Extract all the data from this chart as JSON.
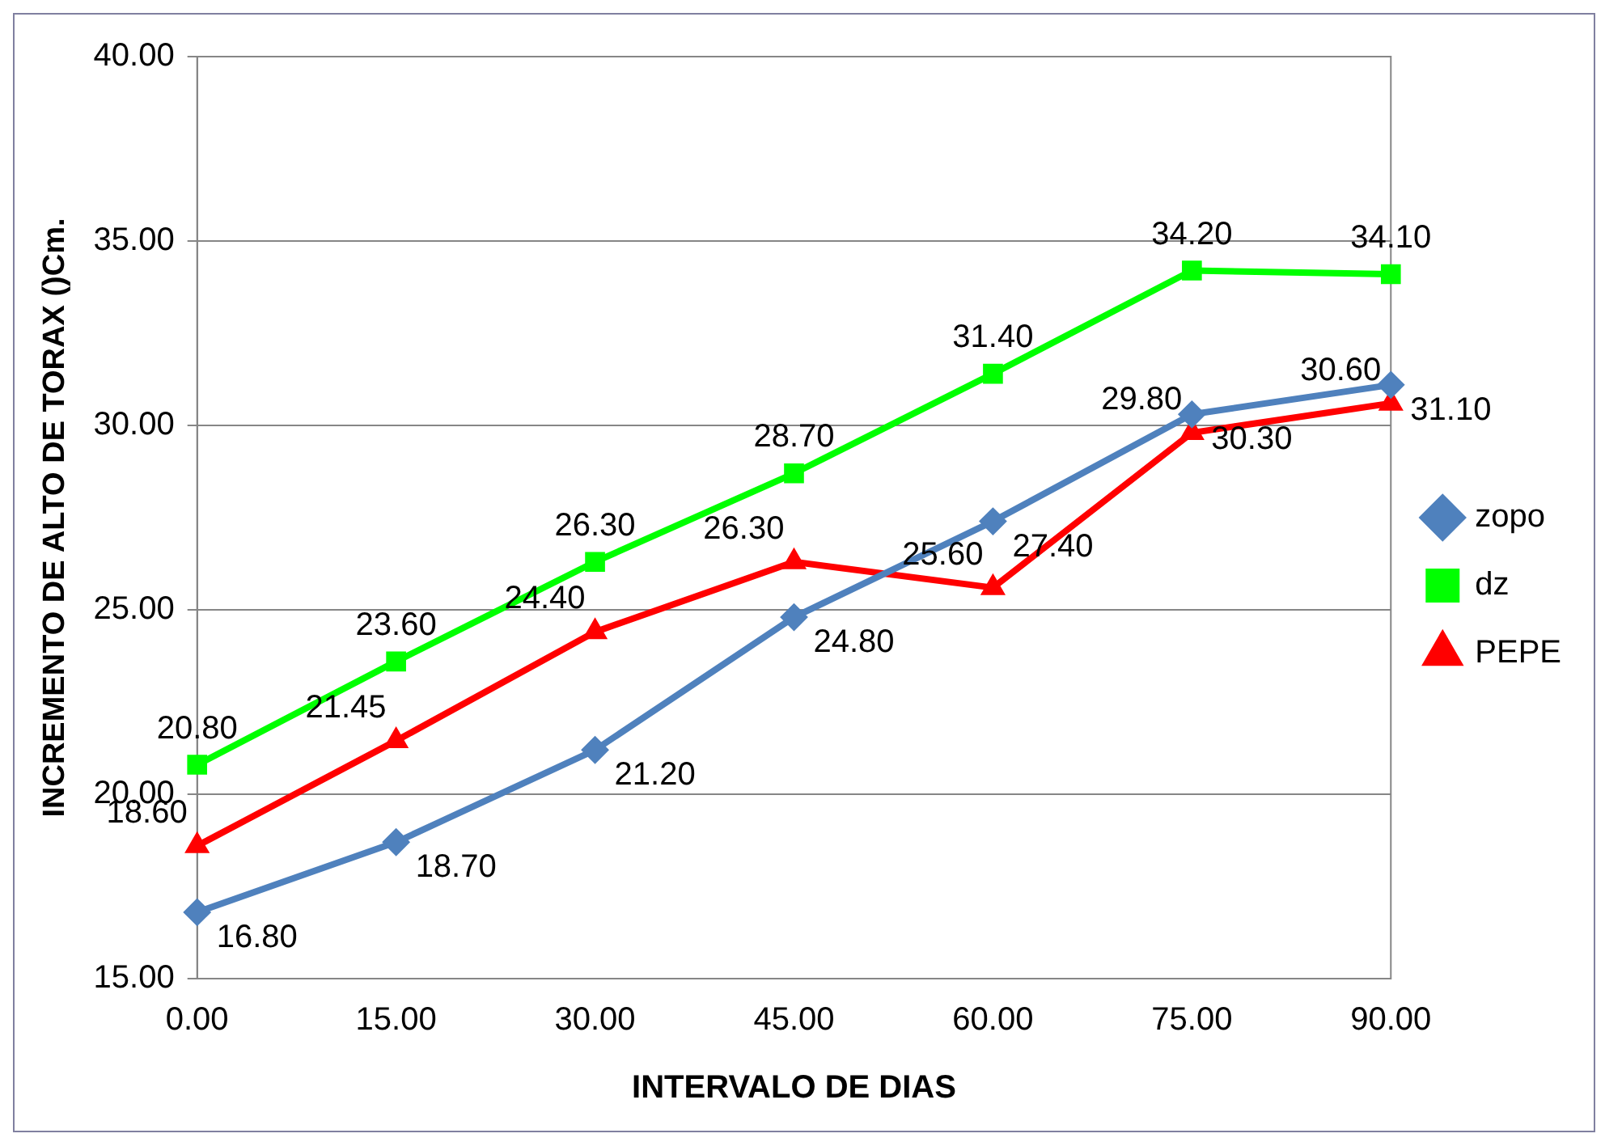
{
  "chart_data": {
    "type": "line",
    "xlabel": "INTERVALO DE DIAS",
    "ylabel": "INCREMENTO DE ALTO DE TORAX ()Cm.",
    "categories": [
      "0.00",
      "15.00",
      "30.00",
      "45.00",
      "60.00",
      "75.00",
      "90.00"
    ],
    "series": [
      {
        "name": "zopo",
        "color": "#4f81bd",
        "marker": "diamond",
        "values": [
          16.8,
          18.7,
          21.2,
          24.8,
          27.4,
          30.3,
          31.1
        ],
        "value_labels": [
          "16.80",
          "18.70",
          "21.20",
          "24.80",
          "27.40",
          "30.30",
          "31.10"
        ]
      },
      {
        "name": "dz",
        "color": "#00ff00",
        "marker": "square",
        "values": [
          20.8,
          23.6,
          26.3,
          28.7,
          31.4,
          34.2,
          34.1
        ],
        "value_labels": [
          "20.80",
          "23.60",
          "26.30",
          "28.70",
          "31.40",
          "34.20",
          "34.10"
        ]
      },
      {
        "name": "PEPE",
        "color": "#ff0000",
        "marker": "triangle",
        "values": [
          18.6,
          21.45,
          24.4,
          26.3,
          25.6,
          29.8,
          30.6
        ],
        "value_labels": [
          "18.60",
          "21.45",
          "24.40",
          "26.30",
          "25.60",
          "29.80",
          "30.60"
        ]
      }
    ],
    "ylim": [
      15,
      40
    ],
    "yticks": [
      {
        "value": 15,
        "label": "15.00"
      },
      {
        "value": 20,
        "label": "20.00"
      },
      {
        "value": 25,
        "label": "25.00"
      },
      {
        "value": 30,
        "label": "30.00"
      },
      {
        "value": 35,
        "label": "35.00"
      },
      {
        "value": 40,
        "label": "40.00"
      }
    ],
    "grid": "y",
    "legend": "right"
  }
}
